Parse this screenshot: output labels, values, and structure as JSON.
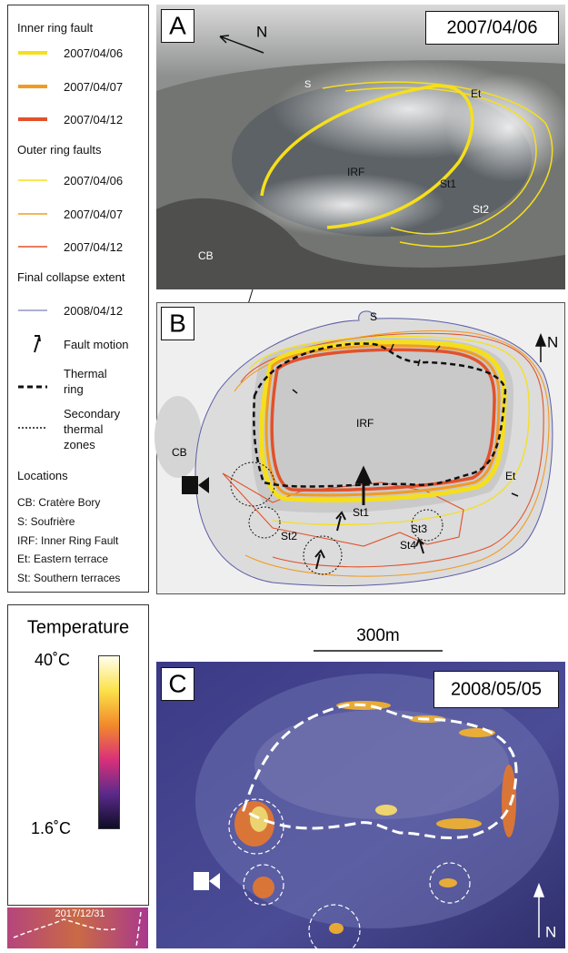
{
  "legend": {
    "inner_ring_fault": {
      "title": "Inner ring fault",
      "items": [
        {
          "label": "2007/04/06",
          "color": "#f5df1c"
        },
        {
          "label": "2007/04/07",
          "color": "#f29b22"
        },
        {
          "label": "2007/04/12",
          "color": "#e2512b"
        }
      ]
    },
    "outer_ring_faults": {
      "title": "Outer ring faults",
      "items": [
        {
          "label": "2007/04/06",
          "color": "#f5df1c"
        },
        {
          "label": "2007/04/07",
          "color": "#f29b22"
        },
        {
          "label": "2007/04/12",
          "color": "#e2512b"
        }
      ]
    },
    "final_collapse_extent": {
      "title": "Final collapse extent",
      "items": [
        {
          "label": "2008/04/12",
          "color": "#5c5ca8"
        }
      ]
    },
    "symbols": [
      "Fault motion",
      "Thermal ring",
      "Secondary thermal zones"
    ],
    "locations": {
      "title": "Locations",
      "items": [
        "CB: Cratère Bory",
        "S: Soufrière",
        "IRF: Inner Ring Fault",
        "Et: Eastern terrace",
        "St: Southern terraces"
      ]
    }
  },
  "panel_a": {
    "label": "A",
    "date": "2007/04/06",
    "north": "N",
    "places": [
      "S",
      "Et",
      "IRF",
      "St1",
      "St2",
      "CB"
    ]
  },
  "panel_b": {
    "label": "B",
    "north": "N",
    "places": [
      "S",
      "IRF",
      "Et",
      "CB",
      "St1",
      "St2",
      "St3",
      "St4"
    ]
  },
  "temperature": {
    "title": "Temperature",
    "max": "40˚C",
    "min": "1.6˚C"
  },
  "inset": {
    "date": "2017/12/31"
  },
  "scale_bar": "300m",
  "panel_c": {
    "label": "C",
    "date": "2008/05/05",
    "north": "N"
  }
}
